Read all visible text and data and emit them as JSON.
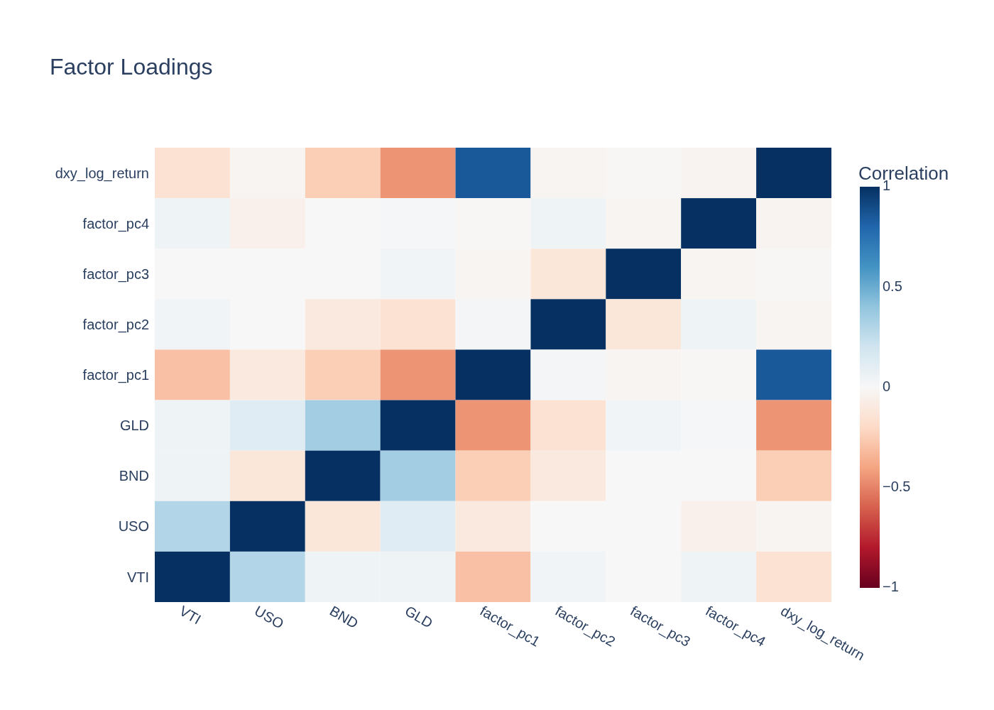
{
  "chart_data": {
    "type": "heatmap",
    "title": "Factor Loadings",
    "clabel": "Correlation",
    "categories": [
      "VTI",
      "USO",
      "BND",
      "GLD",
      "factor_pc1",
      "factor_pc2",
      "factor_pc3",
      "factor_pc4",
      "dxy_log_return"
    ],
    "y_categories": [
      "dxy_log_return",
      "factor_pc4",
      "factor_pc3",
      "factor_pc2",
      "factor_pc1",
      "GLD",
      "BND",
      "USO",
      "VTI"
    ],
    "cells": [
      [
        -0.15,
        -0.02,
        -0.25,
        -0.45,
        0.85,
        -0.02,
        -0.01,
        -0.03,
        1
      ],
      [
        0.05,
        -0.05,
        0,
        0.01,
        -0.01,
        0.05,
        -0.02,
        1,
        -0.03
      ],
      [
        0,
        0,
        0,
        0.03,
        -0.02,
        -0.12,
        1,
        -0.02,
        -0.01
      ],
      [
        0.03,
        0,
        -0.1,
        -0.15,
        0.02,
        1,
        -0.12,
        0.05,
        -0.02
      ],
      [
        -0.3,
        -0.1,
        -0.25,
        -0.45,
        1,
        0.02,
        -0.02,
        -0.01,
        0.85
      ],
      [
        0.05,
        0.12,
        0.35,
        1,
        -0.45,
        -0.15,
        0.03,
        0.01,
        -0.45
      ],
      [
        0.05,
        -0.12,
        1,
        0.35,
        -0.25,
        -0.1,
        0,
        0,
        -0.25
      ],
      [
        0.3,
        1,
        -0.12,
        0.12,
        -0.1,
        0,
        0,
        -0.05,
        -0.02
      ],
      [
        1,
        0.3,
        0.05,
        0.05,
        -0.3,
        0.03,
        0,
        0.05,
        -0.15
      ]
    ],
    "clim": [
      -1,
      1
    ],
    "cticks": [
      {
        "value": -1,
        "label": "−1"
      },
      {
        "value": -0.5,
        "label": "−0.5"
      },
      0,
      0.5,
      1
    ]
  }
}
